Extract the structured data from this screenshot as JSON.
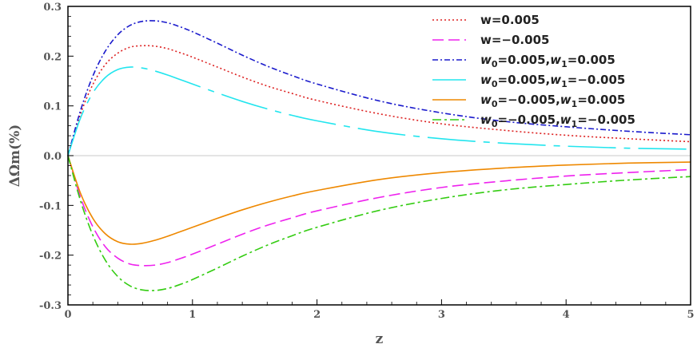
{
  "chart_data": {
    "type": "line",
    "title": "",
    "xlabel": "z",
    "ylabel": "ΔΩm(%)",
    "xlim": [
      0,
      5
    ],
    "ylim": [
      -0.3,
      0.3
    ],
    "xticks": [
      0,
      1,
      2,
      3,
      4,
      5
    ],
    "xtick_labels": [
      "0",
      "1",
      "2",
      "3",
      "4",
      "5"
    ],
    "yticks": [
      -0.3,
      -0.2,
      -0.1,
      0.0,
      0.1,
      0.2,
      0.3
    ],
    "ytick_labels": [
      "-0.3",
      "-0.2",
      "-0.1",
      "0.0",
      "0.1",
      "0.2",
      "0.3"
    ],
    "x": [
      0,
      0.1,
      0.2,
      0.3,
      0.4,
      0.5,
      0.6,
      0.7,
      0.8,
      0.9,
      1.0,
      1.2,
      1.4,
      1.6,
      1.8,
      2.0,
      2.5,
      3.0,
      3.5,
      4.0,
      4.5,
      5.0
    ],
    "legend_location": "top-right",
    "series": [
      {
        "name": "w=0.005",
        "label_main": "w=0.005",
        "color": "#dd2222",
        "dash": "2,3",
        "values": [
          0,
          0.083,
          0.143,
          0.183,
          0.206,
          0.218,
          0.221,
          0.22,
          0.215,
          0.207,
          0.198,
          0.178,
          0.158,
          0.14,
          0.125,
          0.111,
          0.084,
          0.064,
          0.051,
          0.041,
          0.034,
          0.028
        ]
      },
      {
        "name": "w=-0.005",
        "label_main": "w=−0.005",
        "color": "#ee22ee",
        "dash": "14,6",
        "values": [
          0,
          -0.083,
          -0.143,
          -0.183,
          -0.206,
          -0.218,
          -0.221,
          -0.22,
          -0.215,
          -0.207,
          -0.198,
          -0.178,
          -0.158,
          -0.14,
          -0.125,
          -0.111,
          -0.084,
          -0.064,
          -0.051,
          -0.041,
          -0.034,
          -0.028
        ]
      },
      {
        "name": "w0=0.005,w1=0.005",
        "label_parts": [
          "w",
          "0",
          "=0.005,",
          "w",
          "1",
          "=0.005"
        ],
        "color": "#1a1acc",
        "dash": "7,3,2,3",
        "values": [
          0,
          0.09,
          0.16,
          0.21,
          0.243,
          0.262,
          0.27,
          0.271,
          0.267,
          0.259,
          0.249,
          0.226,
          0.202,
          0.18,
          0.161,
          0.144,
          0.11,
          0.086,
          0.069,
          0.058,
          0.049,
          0.042
        ]
      },
      {
        "name": "w0=0.005,w1=-0.005",
        "label_parts": [
          "w",
          "0",
          "=0.005,",
          "w",
          "1",
          "=−0.005"
        ],
        "color": "#22e5ee",
        "dash": "60,10,8,10",
        "values": [
          0,
          0.075,
          0.126,
          0.157,
          0.173,
          0.178,
          0.176,
          0.17,
          0.162,
          0.153,
          0.144,
          0.126,
          0.109,
          0.094,
          0.081,
          0.07,
          0.048,
          0.034,
          0.025,
          0.019,
          0.015,
          0.013
        ]
      },
      {
        "name": "w0=-0.005,w1=0.005",
        "label_parts": [
          "w",
          "0",
          "=−0.005,",
          "w",
          "1",
          "=0.005"
        ],
        "color": "#ee8800",
        "dash": "",
        "values": [
          0,
          -0.075,
          -0.126,
          -0.157,
          -0.173,
          -0.178,
          -0.176,
          -0.17,
          -0.162,
          -0.153,
          -0.144,
          -0.126,
          -0.109,
          -0.094,
          -0.081,
          -0.07,
          -0.048,
          -0.034,
          -0.025,
          -0.019,
          -0.015,
          -0.013
        ]
      },
      {
        "name": "w0=-0.005,w1=-0.005",
        "label_parts": [
          "w",
          "0",
          "=−0.005,",
          "w",
          "1",
          "=−0.005"
        ],
        "color": "#33cc11",
        "dash": "11,4,3,4",
        "values": [
          0,
          -0.09,
          -0.16,
          -0.21,
          -0.243,
          -0.262,
          -0.27,
          -0.271,
          -0.267,
          -0.259,
          -0.249,
          -0.226,
          -0.202,
          -0.18,
          -0.161,
          -0.144,
          -0.11,
          -0.086,
          -0.069,
          -0.058,
          -0.049,
          -0.042
        ]
      }
    ]
  }
}
